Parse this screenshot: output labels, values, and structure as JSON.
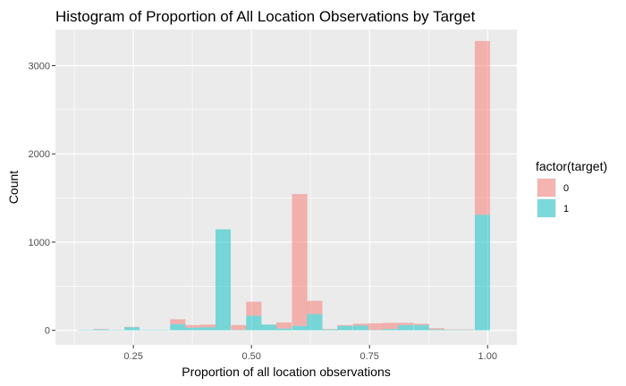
{
  "chart_data": {
    "type": "bar",
    "subtype": "stacked-histogram",
    "title": "Histogram of Proportion of All Location Observations by Target",
    "xlabel": "Proportion of all location observations",
    "ylabel": "Count",
    "xlim": [
      0.085,
      1.062
    ],
    "ylim": [
      -165,
      3410
    ],
    "x_ticks": [
      0.25,
      0.5,
      0.75,
      1.0
    ],
    "x_tick_labels": [
      "0.25",
      "0.50",
      "0.75",
      "1.00"
    ],
    "y_ticks": [
      0,
      1000,
      2000,
      3000
    ],
    "y_tick_labels": [
      "0",
      "1000",
      "2000",
      "3000"
    ],
    "bin_width": 0.0323,
    "bin_centers": [
      0.15,
      0.182,
      0.215,
      0.247,
      0.279,
      0.311,
      0.344,
      0.376,
      0.408,
      0.44,
      0.473,
      0.505,
      0.537,
      0.569,
      0.602,
      0.634,
      0.666,
      0.698,
      0.731,
      0.763,
      0.795,
      0.827,
      0.86,
      0.892,
      0.924,
      0.956,
      0.989
    ],
    "series": [
      {
        "name": "1",
        "color": "#00BFC4",
        "values": [
          5,
          10,
          5,
          35,
          5,
          5,
          70,
          30,
          35,
          1145,
          5,
          165,
          65,
          20,
          50,
          185,
          10,
          50,
          55,
          5,
          15,
          60,
          60,
          10,
          5,
          5,
          1310
        ]
      },
      {
        "name": "0",
        "color": "#F8766D",
        "values": [
          0,
          5,
          0,
          5,
          0,
          0,
          55,
          30,
          30,
          0,
          55,
          160,
          0,
          70,
          1495,
          150,
          5,
          10,
          20,
          75,
          70,
          25,
          15,
          15,
          5,
          5,
          1970
        ]
      }
    ],
    "stack_order": [
      "1",
      "0"
    ],
    "bar_opacity": 0.5,
    "grid": true,
    "panel_background": "#EBEBEB",
    "legend": {
      "title": "factor(target)",
      "placement": "right",
      "entries": [
        {
          "label": "0",
          "color": "#F8766D"
        },
        {
          "label": "1",
          "color": "#00BFC4"
        }
      ]
    }
  }
}
